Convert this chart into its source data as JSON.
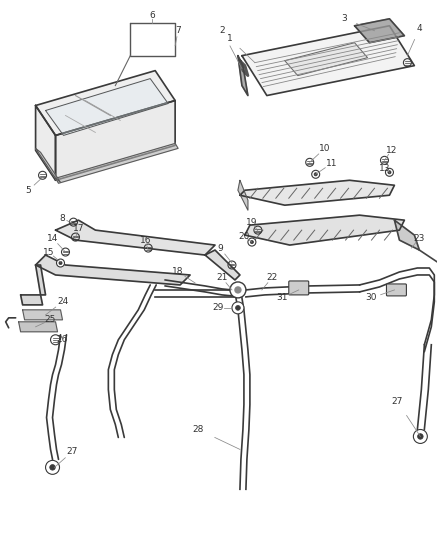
{
  "bg_color": "#ffffff",
  "line_color": "#3a3a3a",
  "figsize": [
    4.38,
    5.33
  ],
  "dpi": 100,
  "gray1": "#cccccc",
  "gray2": "#aaaaaa",
  "gray3": "#888888",
  "dark": "#222222"
}
